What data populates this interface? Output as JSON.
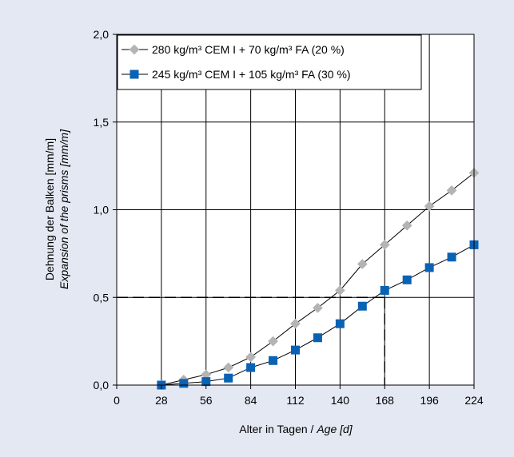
{
  "chart_data": {
    "type": "line",
    "xlabel": "Alter in Tagen / ",
    "xlabel_italic": "Age [d]",
    "ylabel": "Dehnung der Balken [mm/m]",
    "ylabel_italic": "Expansion of the prisms [mm/m]",
    "xlim": [
      0,
      224
    ],
    "ylim": [
      0,
      2.0
    ],
    "xticks": [
      0,
      28,
      56,
      84,
      112,
      140,
      168,
      196,
      224
    ],
    "xtick_labels": [
      "0",
      "28",
      "56",
      "84",
      "112",
      "140",
      "168",
      "196",
      "224"
    ],
    "yticks": [
      0,
      0.5,
      1.0,
      1.5,
      2.0
    ],
    "ytick_labels": [
      "0,0",
      "0,5",
      "1,0",
      "1,5",
      "2,0"
    ],
    "grid": true,
    "legend_position": "top-left",
    "series": [
      {
        "name": "280 kg/m³ CEM I + 70 kg/m³  FA (20 %)",
        "marker": "diamond",
        "color": "#b4b4b4",
        "x": [
          28,
          42,
          56,
          70,
          84,
          98,
          112,
          126,
          140,
          154,
          168,
          182,
          196,
          210,
          224
        ],
        "y": [
          0.0,
          0.03,
          0.06,
          0.1,
          0.16,
          0.25,
          0.35,
          0.44,
          0.54,
          0.69,
          0.8,
          0.91,
          1.02,
          1.11,
          1.21
        ]
      },
      {
        "name": "245 kg/m³ CEM I + 105 kg/m³ FA (30 %)",
        "marker": "square",
        "color": "#0a62b4",
        "x": [
          28,
          42,
          56,
          70,
          84,
          98,
          112,
          126,
          140,
          154,
          168,
          182,
          196,
          210,
          224
        ],
        "y": [
          0.0,
          0.01,
          0.02,
          0.04,
          0.1,
          0.14,
          0.2,
          0.27,
          0.35,
          0.45,
          0.54,
          0.6,
          0.67,
          0.73,
          0.8
        ]
      }
    ],
    "reference_lines": [
      {
        "type": "horizontal-dashed",
        "y": 0.5
      },
      {
        "type": "vertical-dashed",
        "x": 168
      }
    ]
  }
}
